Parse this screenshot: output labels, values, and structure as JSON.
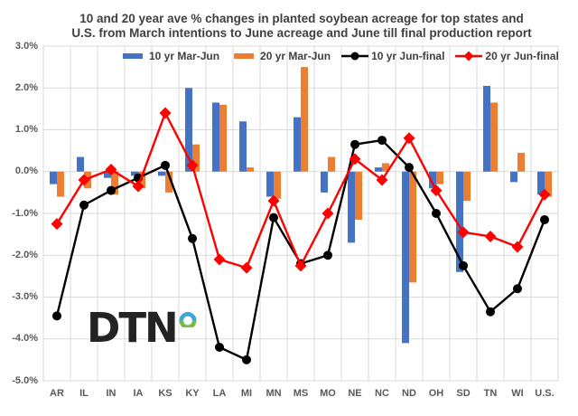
{
  "title": {
    "line1": "10 and 20 year ave % changes in planted soybean acreage for top states and",
    "line2": "U.S. from March intentions to June acreage and June till final production report"
  },
  "logo": {
    "text": "DTN"
  },
  "colors": {
    "background": "#ffffff",
    "gridline": "#d9d9d9",
    "title": "#404040",
    "axis_labels": "#595959",
    "bar_blue": "#4472c4",
    "bar_orange": "#ed7d31",
    "line_black": "#000000",
    "line_red": "#ff0000",
    "logo_text": "#232323",
    "logo_ring_blue": "#3da5d9",
    "logo_ring_green": "#72bf44"
  },
  "chart_data": {
    "type": "bar",
    "subtype": "combo bar+line",
    "title": "10 and 20 year ave % changes in planted soybean acreage for top states and U.S. from March intentions to June acreage and June till final production report",
    "xlabel": "",
    "ylabel": "",
    "grid": true,
    "legend_position": "top-inside",
    "ylim": [
      -5,
      3
    ],
    "yticks": [
      "3.0%",
      "2.0%",
      "1.0%",
      "0.0%",
      "-1.0%",
      "-2.0%",
      "-3.0%",
      "-4.0%",
      "-5.0%"
    ],
    "ytick_values": [
      3,
      2,
      1,
      0,
      -1,
      -2,
      -3,
      -4,
      -5
    ],
    "categories": [
      "AR",
      "IL",
      "IN",
      "IA",
      "KS",
      "KY",
      "LA",
      "MI",
      "MN",
      "MS",
      "MO",
      "NE",
      "NC",
      "ND",
      "OH",
      "SD",
      "TN",
      "WI",
      "U.S."
    ],
    "series": [
      {
        "name": "10 yr Mar-Jun",
        "type": "bar",
        "color": "#4472c4",
        "values": [
          -0.3,
          0.35,
          -0.15,
          -0.1,
          -0.1,
          2.0,
          1.65,
          1.2,
          -0.6,
          1.3,
          -0.5,
          -1.7,
          0.1,
          -4.1,
          -0.4,
          -2.4,
          2.05,
          -0.25,
          -0.55
        ]
      },
      {
        "name": "20 yr Mar-Jun",
        "type": "bar",
        "color": "#ed7d31",
        "values": [
          -0.6,
          -0.4,
          -0.55,
          -0.4,
          -0.5,
          0.65,
          1.6,
          0.1,
          -0.65,
          2.5,
          0.35,
          -1.15,
          0.2,
          -2.65,
          -0.3,
          -0.7,
          1.65,
          0.45,
          -0.6
        ]
      },
      {
        "name": "10 yr Jun-final",
        "type": "line",
        "marker": "circle",
        "color": "#000000",
        "values": [
          -3.45,
          -0.8,
          -0.45,
          -0.15,
          0.15,
          -1.6,
          -4.2,
          -4.5,
          -1.1,
          -2.2,
          -2.0,
          0.65,
          0.75,
          0.1,
          -1.0,
          -2.25,
          -3.35,
          -2.8,
          -1.15
        ]
      },
      {
        "name": "20 yr Jun-final",
        "type": "line",
        "marker": "diamond",
        "color": "#ff0000",
        "values": [
          -1.25,
          -0.2,
          0.05,
          -0.35,
          1.4,
          0.15,
          -2.1,
          -2.3,
          -0.7,
          -2.25,
          -1.0,
          0.3,
          -0.2,
          0.8,
          -0.45,
          -1.45,
          -1.55,
          -1.8,
          -0.55
        ]
      }
    ]
  }
}
